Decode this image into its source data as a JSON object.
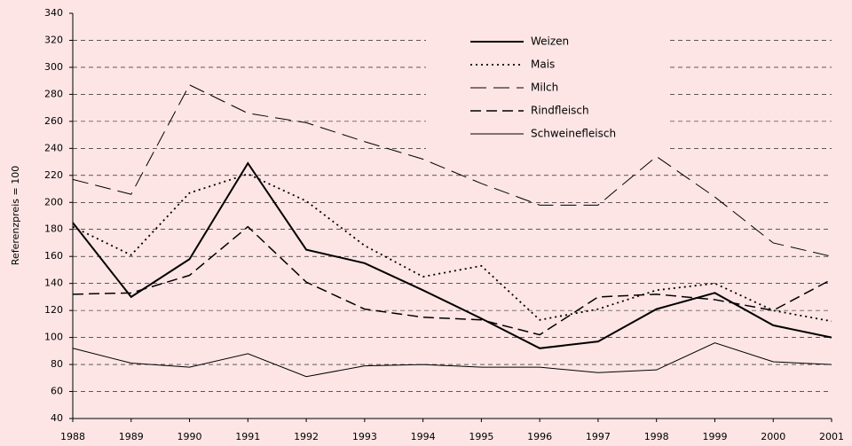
{
  "chart_data": {
    "type": "line",
    "ylabel": "Referenzpreis = 100",
    "categories": [
      "1988",
      "1989",
      "1990",
      "1991",
      "1992",
      "1993",
      "1994",
      "1995",
      "1996",
      "1997",
      "1998",
      "1999",
      "2000",
      "2001"
    ],
    "series": [
      {
        "name": "Weizen",
        "color": "#000000",
        "style": "bold",
        "values": [
          185,
          130,
          158,
          229,
          165,
          155,
          135,
          114,
          92,
          97,
          121,
          133,
          109,
          100
        ]
      },
      {
        "name": "Mais",
        "color": "#000000",
        "style": "dotted",
        "values": [
          182,
          161,
          207,
          221,
          201,
          168,
          145,
          153,
          113,
          121,
          135,
          140,
          120,
          112
        ]
      },
      {
        "name": "Milch",
        "color": "#000000",
        "style": "long-dash",
        "values": [
          217,
          206,
          287,
          266,
          259,
          245,
          232,
          214,
          198,
          198,
          234,
          204,
          170,
          160
        ]
      },
      {
        "name": "Rindfleisch",
        "color": "#000000",
        "style": "dashed",
        "values": [
          132,
          133,
          146,
          182,
          141,
          121,
          115,
          113,
          102,
          130,
          132,
          128,
          120,
          143
        ]
      },
      {
        "name": "Schweinefleisch",
        "color": "#000000",
        "style": "thin",
        "values": [
          92,
          81,
          78,
          88,
          71,
          79,
          80,
          78,
          78,
          74,
          76,
          96,
          82,
          80
        ]
      }
    ],
    "ylim": [
      40,
      340
    ],
    "yticks": [
      40,
      60,
      80,
      100,
      120,
      140,
      160,
      180,
      200,
      220,
      240,
      260,
      280,
      300,
      320,
      340
    ],
    "grid": true,
    "legend": "top-right"
  }
}
